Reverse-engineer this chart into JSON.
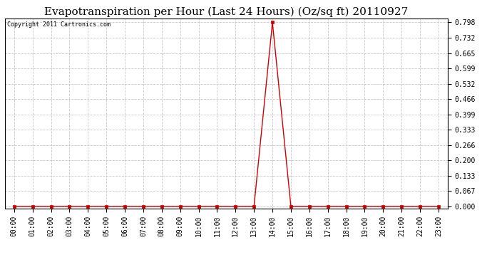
{
  "title": "Evapotranspiration per Hour (Last 24 Hours) (Oz/sq ft) 20110927",
  "copyright_text": "Copyright 2011 Cartronics.com",
  "hours": [
    "00:00",
    "01:00",
    "02:00",
    "03:00",
    "04:00",
    "05:00",
    "06:00",
    "07:00",
    "08:00",
    "09:00",
    "10:00",
    "11:00",
    "12:00",
    "13:00",
    "14:00",
    "15:00",
    "16:00",
    "17:00",
    "18:00",
    "19:00",
    "20:00",
    "21:00",
    "22:00",
    "23:00"
  ],
  "values": [
    0.0,
    0.0,
    0.0,
    0.0,
    0.0,
    0.0,
    0.0,
    0.0,
    0.0,
    0.0,
    0.0,
    0.0,
    0.0,
    0.0,
    0.798,
    0.0,
    0.0,
    0.0,
    0.0,
    0.0,
    0.0,
    0.0,
    0.0,
    0.0
  ],
  "y_ticks": [
    0.0,
    0.067,
    0.133,
    0.2,
    0.266,
    0.333,
    0.399,
    0.466,
    0.532,
    0.599,
    0.665,
    0.732,
    0.798
  ],
  "y_tick_labels": [
    "0.000",
    "0.067",
    "0.133",
    "0.200",
    "0.266",
    "0.333",
    "0.399",
    "0.466",
    "0.532",
    "0.599",
    "0.665",
    "0.732",
    "0.798"
  ],
  "ylim_max": 0.798,
  "line_color": "#cc0000",
  "marker": "s",
  "marker_size": 3,
  "bg_color": "#ffffff",
  "grid_color": "#c8c8c8",
  "title_fontsize": 11,
  "copyright_fontsize": 6,
  "tick_fontsize": 7
}
